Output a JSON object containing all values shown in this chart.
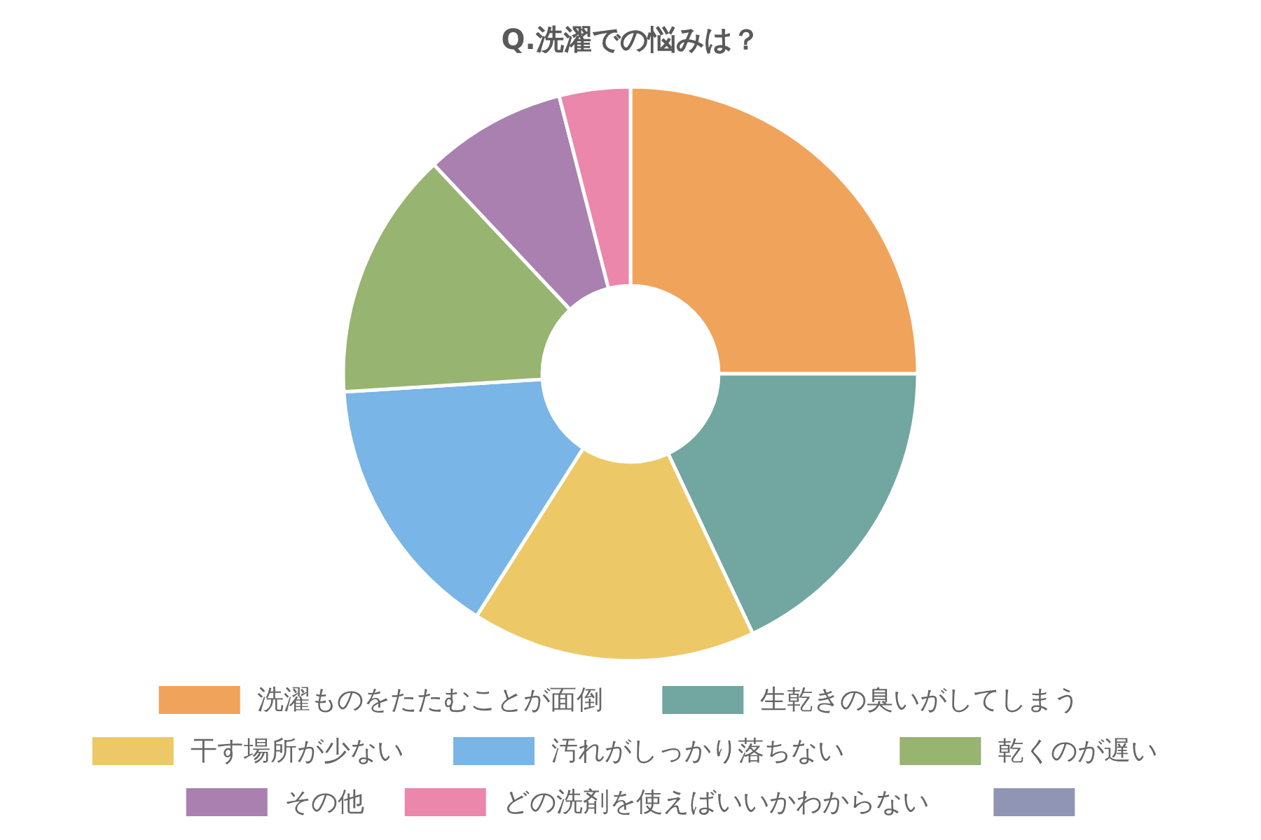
{
  "chart_data": {
    "type": "donut",
    "title": "Q.洗濯での悩みは？",
    "categories": [
      "洗濯ものをたたむことが面倒",
      "生乾きの臭いがしてしまう",
      "干す場所が少ない",
      "汚れがしっかり落ちない",
      "乾くのが遅い",
      "その他",
      "どの洗剤を使えばいいかわからない",
      null
    ],
    "values": [
      25,
      18,
      16,
      15,
      14,
      8,
      4,
      0
    ],
    "colors": [
      "#f0a35a",
      "#71a7a0",
      "#edc867",
      "#79b5e6",
      "#97b470",
      "#a980b0",
      "#ea87ab",
      "#9095b5"
    ],
    "legend": "bottom"
  }
}
